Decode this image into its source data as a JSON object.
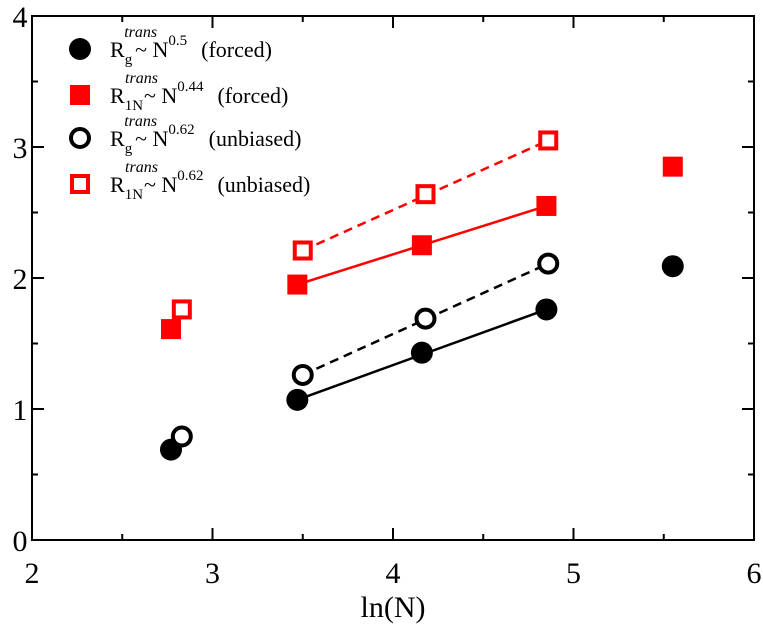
{
  "chart_data": {
    "type": "scatter",
    "title": "",
    "xlabel": "ln(N)",
    "ylabel": "",
    "xlim": [
      2,
      6
    ],
    "ylim": [
      0,
      4
    ],
    "x_ticks": [
      2,
      3,
      4,
      5,
      6
    ],
    "y_ticks": [
      0,
      1,
      2,
      3,
      4
    ],
    "x_tick_labels": [
      "2",
      "3",
      "4",
      "5",
      "6"
    ],
    "y_tick_labels": [
      "0",
      "1",
      "2",
      "3",
      "4"
    ],
    "x_minor_ticks": [
      2.5,
      3.5,
      4.5,
      5.5
    ],
    "y_minor_ticks": [
      0.5,
      1.5,
      2.5,
      3.5
    ],
    "grid": false,
    "legend_position": "top-left",
    "series": [
      {
        "name": "Rg_trans_forced",
        "legend": {
          "base": "R",
          "sub": "g",
          "sup": "trans",
          "tilde": "~ N",
          "exp": "0.5",
          "note": "(forced)"
        },
        "marker": "circle",
        "filled": true,
        "color": "#000000",
        "points": [
          {
            "x": 2.77,
            "y": 0.69
          },
          {
            "x": 3.47,
            "y": 1.07
          },
          {
            "x": 4.16,
            "y": 1.43
          },
          {
            "x": 4.85,
            "y": 1.76
          },
          {
            "x": 5.55,
            "y": 2.09
          }
        ],
        "fit": {
          "style": "solid",
          "points": [
            {
              "x": 3.47,
              "y": 1.07
            },
            {
              "x": 4.85,
              "y": 1.76
            }
          ]
        }
      },
      {
        "name": "R1N_trans_forced",
        "legend": {
          "base": "R",
          "sub": "1N",
          "sup": "trans",
          "tilde": "~ N",
          "exp": "0.44",
          "note": "(forced)"
        },
        "marker": "square",
        "filled": true,
        "color": "#ff0000",
        "points": [
          {
            "x": 2.77,
            "y": 1.61
          },
          {
            "x": 3.47,
            "y": 1.95
          },
          {
            "x": 4.16,
            "y": 2.25
          },
          {
            "x": 4.85,
            "y": 2.55
          },
          {
            "x": 5.55,
            "y": 2.85
          }
        ],
        "fit": {
          "style": "solid",
          "points": [
            {
              "x": 3.47,
              "y": 1.95
            },
            {
              "x": 4.85,
              "y": 2.55
            }
          ]
        }
      },
      {
        "name": "Rg_trans_unbiased",
        "legend": {
          "base": "R",
          "sub": "g",
          "sup": "trans",
          "tilde": "~ N",
          "exp": "0.62",
          "note": "(unbiased)"
        },
        "marker": "circle",
        "filled": false,
        "color": "#000000",
        "points": [
          {
            "x": 2.83,
            "y": 0.79
          },
          {
            "x": 3.5,
            "y": 1.26
          },
          {
            "x": 4.18,
            "y": 1.69
          },
          {
            "x": 4.86,
            "y": 2.11
          }
        ],
        "fit": {
          "style": "dashed",
          "points": [
            {
              "x": 3.5,
              "y": 1.26
            },
            {
              "x": 4.86,
              "y": 2.11
            }
          ]
        }
      },
      {
        "name": "R1N_trans_unbiased",
        "legend": {
          "base": "R",
          "sub": "1N",
          "sup": "trans",
          "tilde": "~ N",
          "exp": "0.62",
          "note": "(unbiased)"
        },
        "marker": "square",
        "filled": false,
        "color": "#ff0000",
        "points": [
          {
            "x": 2.83,
            "y": 1.76
          },
          {
            "x": 3.5,
            "y": 2.21
          },
          {
            "x": 4.18,
            "y": 2.64
          },
          {
            "x": 4.86,
            "y": 3.05
          }
        ],
        "fit": {
          "style": "dashed",
          "points": [
            {
              "x": 3.5,
              "y": 2.21
            },
            {
              "x": 4.86,
              "y": 3.05
            }
          ]
        }
      }
    ]
  }
}
